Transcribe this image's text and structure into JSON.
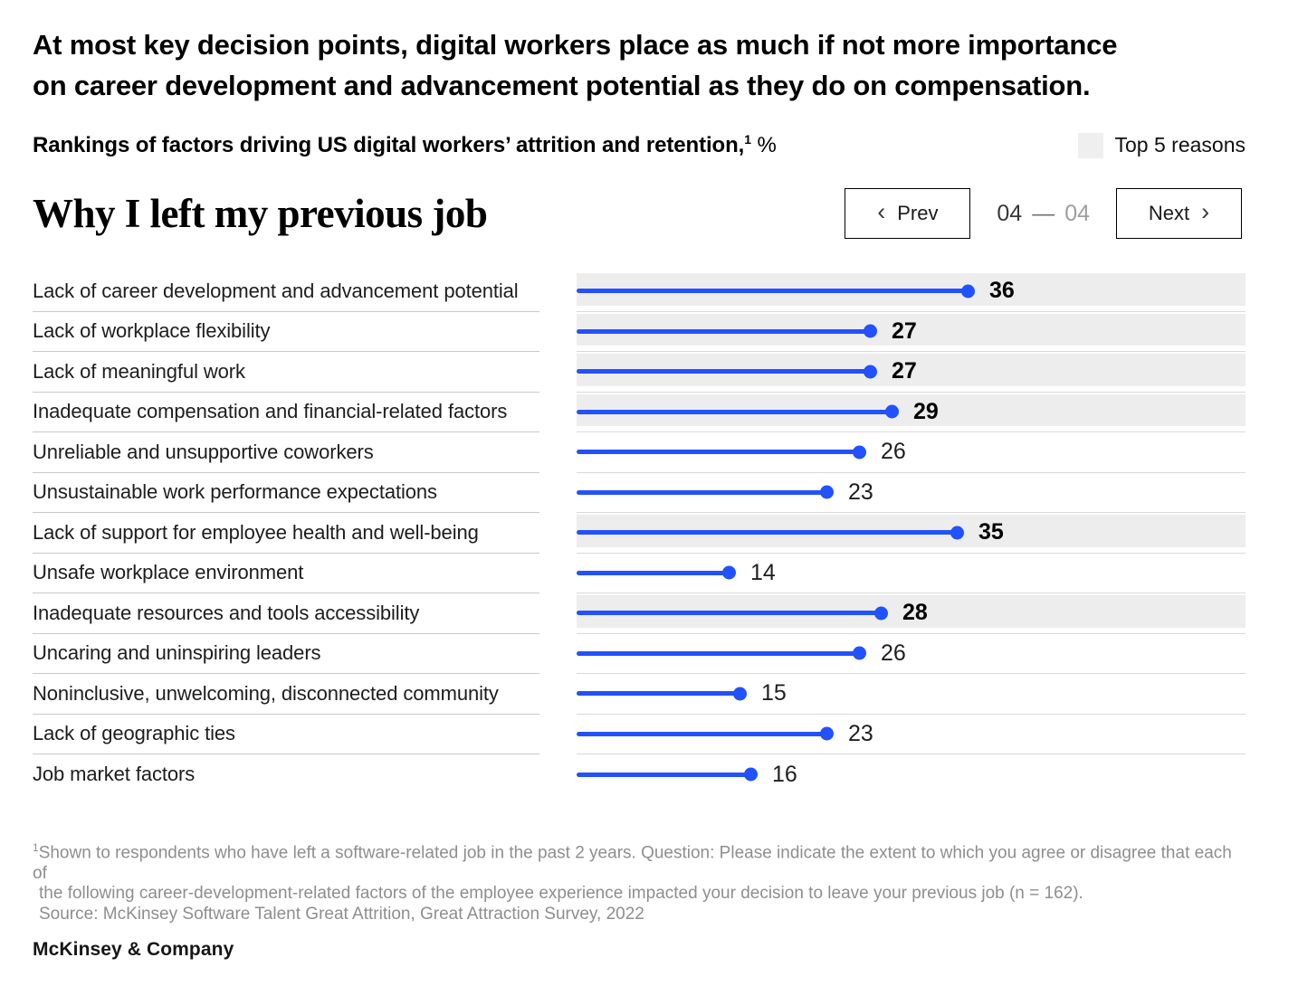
{
  "header": {
    "title_line1": "At most key decision points, digital workers place as much if not more importance",
    "title_line2": "on career development and advancement potential as they do on compensation.",
    "subtitle": "Rankings of factors driving US digital workers’ attrition and retention,",
    "subtitle_footnote_marker": "1",
    "subtitle_unit": "%",
    "legend": {
      "label": "Top 5 reasons"
    }
  },
  "panel": {
    "heading": "Why I left my previous job",
    "prev_chevron": "‹",
    "prev_label": "Prev",
    "next_label": "Next",
    "next_chevron": "›",
    "page_current": "04",
    "page_separator": "—",
    "page_total": "04"
  },
  "chart_data": {
    "type": "bar",
    "orientation": "horizontal",
    "title": "Why I left my previous job",
    "unit": "%",
    "xlim": [
      0,
      61
    ],
    "grid": false,
    "legend_position": "top-right",
    "legend_label": "Top 5 reasons",
    "highlight_note": "Rows shaded gray mark the top 5 reasons",
    "categories": [
      "Lack of career development and advancement potential",
      "Lack of workplace flexibility",
      "Lack of meaningful work",
      "Inadequate compensation and financial-related factors",
      "Unreliable and unsupportive coworkers",
      "Unsustainable work performance expectations",
      "Lack of support for employee health and well-being",
      "Unsafe workplace environment",
      "Inadequate resources and tools accessibility",
      "Uncaring and uninspiring leaders",
      "Noninclusive, unwelcoming, disconnected community",
      "Lack of geographic ties",
      "Job market factors"
    ],
    "values": [
      36,
      27,
      27,
      29,
      26,
      23,
      35,
      14,
      28,
      26,
      15,
      23,
      16
    ],
    "top5": [
      true,
      true,
      true,
      true,
      false,
      false,
      true,
      false,
      true,
      false,
      false,
      false,
      false
    ]
  },
  "footnote": {
    "marker": "1",
    "line1": "Shown to respondents who have left a software-related job in the past 2 years. Question: Please indicate the extent to which you agree or disagree that each of",
    "line2": "the following career-development-related factors of the employee experience impacted your decision to leave your previous job (n = 162).",
    "source": "Source: McKinsey Software Talent Great Attrition, Great Attraction Survey, 2022"
  },
  "brand": "McKinsey & Company",
  "colors": {
    "accent_blue": "#2251ff",
    "highlight_band": "#ededed",
    "legend_swatch": "#efefef"
  }
}
